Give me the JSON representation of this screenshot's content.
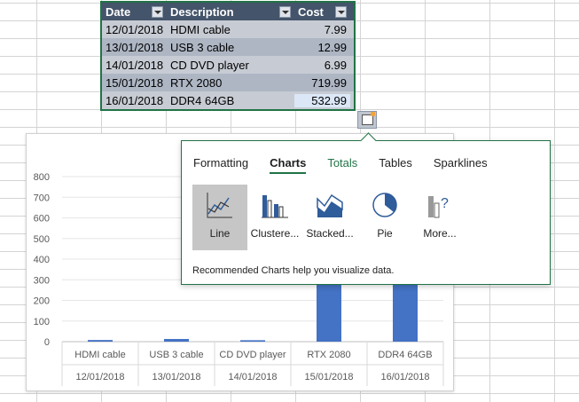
{
  "table": {
    "headers": [
      "Date",
      "Description",
      "Cost"
    ],
    "rows": [
      [
        "12/01/2018",
        "HDMI cable",
        "7.99"
      ],
      [
        "13/01/2018",
        "USB 3 cable",
        "12.99"
      ],
      [
        "14/01/2018",
        "CD DVD player",
        "6.99"
      ],
      [
        "15/01/2018",
        "RTX 2080",
        "719.99"
      ],
      [
        "16/01/2018",
        "DDR4 64GB",
        "532.99"
      ]
    ]
  },
  "popup": {
    "tabs": [
      "Formatting",
      "Charts",
      "Totals",
      "Tables",
      "Sparklines"
    ],
    "active_tab": "Charts",
    "options": [
      {
        "label": "Line",
        "icon": "line-chart-icon"
      },
      {
        "label": "Clustere...",
        "icon": "clustered-column-icon"
      },
      {
        "label": "Stacked...",
        "icon": "stacked-area-icon"
      },
      {
        "label": "Pie",
        "icon": "pie-chart-icon"
      },
      {
        "label": "More...",
        "icon": "more-charts-icon"
      }
    ],
    "hint": "Recommended Charts help you visualize data."
  },
  "colors": {
    "accent": "#217346",
    "bar": "#4472c4",
    "header": "#44546a"
  },
  "chart_data": {
    "type": "bar",
    "categories": [
      "HDMI cable",
      "USB 3 cable",
      "CD DVD player",
      "RTX 2080",
      "DDR4 64GB"
    ],
    "subcategories": [
      "12/01/2018",
      "13/01/2018",
      "14/01/2018",
      "15/01/2018",
      "16/01/2018"
    ],
    "values": [
      7.99,
      12.99,
      6.99,
      719.99,
      532.99
    ],
    "yticks": [
      "0",
      "100",
      "200",
      "300",
      "400",
      "500",
      "600",
      "700",
      "800"
    ],
    "ylim": [
      0,
      800
    ]
  }
}
